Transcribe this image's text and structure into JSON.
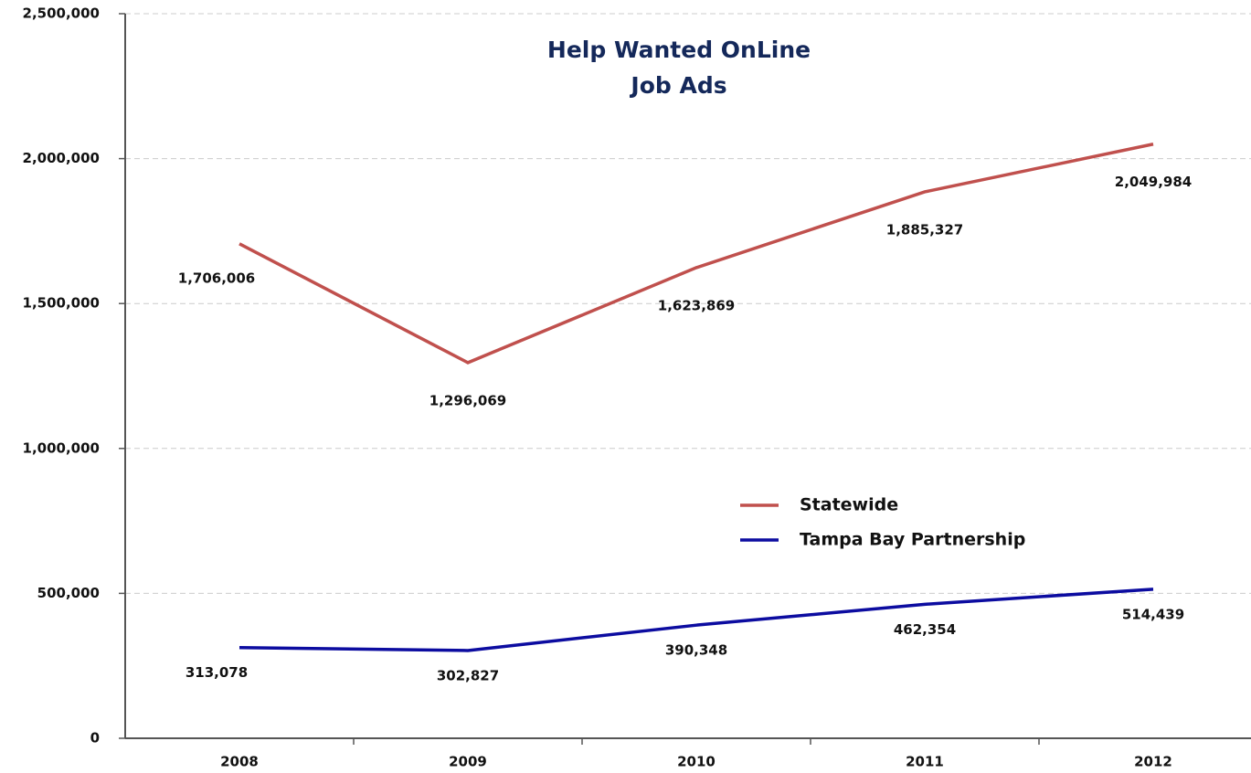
{
  "chart_data": {
    "type": "line",
    "title": [
      "Help Wanted OnLine",
      "Job Ads"
    ],
    "categories": [
      "2008",
      "2009",
      "2010",
      "2011",
      "2012"
    ],
    "series": [
      {
        "name": "Statewide",
        "color": "#c0504d",
        "values": [
          1706006,
          1296069,
          1623869,
          1885327,
          2049984
        ],
        "value_labels": [
          "1,706,006",
          "1,296,069",
          "1,623,869",
          "1,885,327",
          "2,049,984"
        ]
      },
      {
        "name": "Tampa Bay Partnership",
        "color": "#0c0ca0",
        "values": [
          313078,
          302827,
          390348,
          462354,
          514439
        ],
        "value_labels": [
          "313,078",
          "302,827",
          "390,348",
          "462,354",
          "514,439"
        ]
      }
    ],
    "ylim": [
      0,
      2500000
    ],
    "yticks": [
      0,
      {
        "value": 500000,
        "label": "500,000"
      },
      {
        "value": 1000000,
        "label": "1,000,000"
      },
      {
        "value": 1500000,
        "label": "1,500,000"
      },
      {
        "value": 2000000,
        "label": "2,000,000"
      },
      {
        "value": 2500000,
        "label": "2,500,000"
      }
    ],
    "grid": true,
    "legend": "center-right"
  }
}
